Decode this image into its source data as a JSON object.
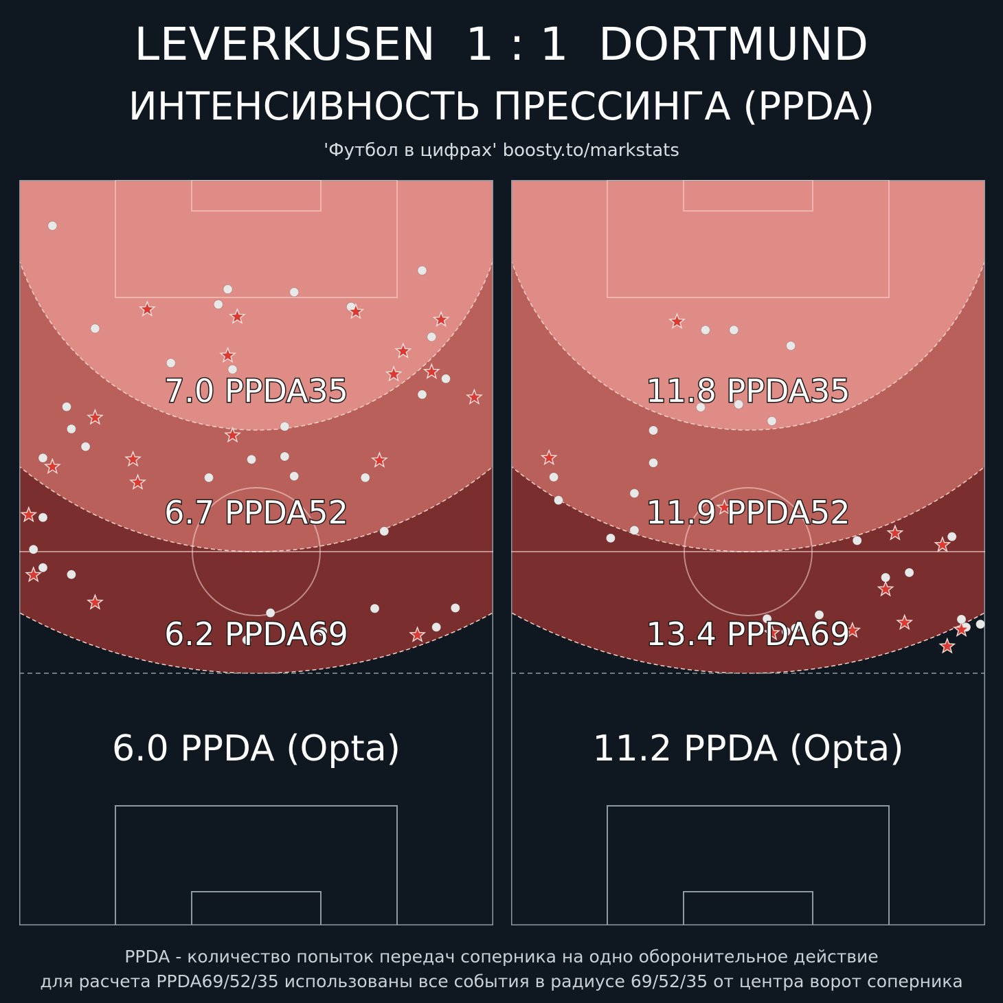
{
  "header": {
    "title": "LEVERKUSEN  1 : 1  DORTMUND",
    "subtitle": "ИНТЕНСИВНОСТЬ ПРЕССИНГА (PPDA)",
    "credit": "'Футбол в цифрах' boosty.to/markstats"
  },
  "footer": {
    "line1": "PPDA - количество попыток передач соперника на одно оборонительное действие",
    "line2": "для расчета PPDA69/52/35 использованы все события в радиусе 69/52/35 от центра ворот соперника"
  },
  "colors": {
    "background": "#0f1820",
    "zone35": "#de8c85",
    "zone52": "#b9605b",
    "zone69": "#7b2e2e",
    "star": "#d93a31",
    "dot": "#e8e8e8",
    "pitch_line": "#8d9aa3"
  },
  "chart_data": [
    {
      "type": "scatter",
      "team": "LEVERKUSEN",
      "ppda35_label": "7.0 PPDA35",
      "ppda52_label": "6.7 PPDA52",
      "ppda69_label": "6.2 PPDA69",
      "opta_label": "6.0 PPDA (Opta)",
      "points": [
        {
          "x": 7,
          "y": 9.3,
          "m": "dot"
        },
        {
          "x": 44,
          "y": 22.2,
          "m": "dot"
        },
        {
          "x": 42,
          "y": 25.3,
          "m": "dot"
        },
        {
          "x": 58,
          "y": 22.8,
          "m": "dot"
        },
        {
          "x": 70,
          "y": 25.8,
          "m": "dot"
        },
        {
          "x": 27,
          "y": 26.3,
          "m": "star"
        },
        {
          "x": 46,
          "y": 27.8,
          "m": "star"
        },
        {
          "x": 71,
          "y": 26.8,
          "m": "star"
        },
        {
          "x": 85,
          "y": 18.4,
          "m": "dot"
        },
        {
          "x": 89,
          "y": 28.4,
          "m": "star"
        },
        {
          "x": 44,
          "y": 35.7,
          "m": "star"
        },
        {
          "x": 45,
          "y": 38.5,
          "m": "dot"
        },
        {
          "x": 87,
          "y": 31.9,
          "m": "dot"
        },
        {
          "x": 81,
          "y": 34.8,
          "m": "star"
        },
        {
          "x": 32,
          "y": 37.2,
          "m": "dot"
        },
        {
          "x": 16,
          "y": 30.2,
          "m": "dot"
        },
        {
          "x": 87,
          "y": 39.0,
          "m": "star"
        },
        {
          "x": 79,
          "y": 39.5,
          "m": "star"
        },
        {
          "x": 90,
          "y": 40.4,
          "m": "dot"
        },
        {
          "x": 85,
          "y": 43.6,
          "m": "dot"
        },
        {
          "x": 96,
          "y": 44.2,
          "m": "star"
        },
        {
          "x": 56,
          "y": 50.1,
          "m": "dot"
        },
        {
          "x": 11,
          "y": 50.6,
          "m": "dot"
        },
        {
          "x": 56,
          "y": 56.2,
          "m": "dot"
        },
        {
          "x": 10,
          "y": 46.1,
          "m": "dot"
        },
        {
          "x": 16,
          "y": 48.3,
          "m": "star"
        },
        {
          "x": 14,
          "y": 54.2,
          "m": "dot"
        },
        {
          "x": 76,
          "y": 57.0,
          "m": "star"
        },
        {
          "x": 5,
          "y": 56.5,
          "m": "dot"
        },
        {
          "x": 7,
          "y": 58.3,
          "m": "star"
        },
        {
          "x": 40,
          "y": 60.5,
          "m": "dot"
        },
        {
          "x": 58,
          "y": 60.2,
          "m": "dot"
        },
        {
          "x": 45,
          "y": 51.9,
          "m": "star"
        },
        {
          "x": 49,
          "y": 56.8,
          "m": "dot"
        },
        {
          "x": 73,
          "y": 60.5,
          "m": "dot"
        },
        {
          "x": 24,
          "y": 56.8,
          "m": "star"
        },
        {
          "x": 25,
          "y": 61.5,
          "m": "star"
        },
        {
          "x": 5,
          "y": 68.6,
          "m": "dot"
        },
        {
          "x": 2,
          "y": 68.1,
          "m": "star"
        },
        {
          "x": 3,
          "y": 75.1,
          "m": "dot"
        },
        {
          "x": 11,
          "y": 80.2,
          "m": "dot"
        },
        {
          "x": 77,
          "y": 71.4,
          "m": "dot"
        },
        {
          "x": 75,
          "y": 87.1,
          "m": "dot"
        },
        {
          "x": 53,
          "y": 88.0,
          "m": "dot"
        },
        {
          "x": 92,
          "y": 87.0,
          "m": "dot"
        },
        {
          "x": 5,
          "y": 78.8,
          "m": "dot"
        },
        {
          "x": 3,
          "y": 80.3,
          "m": "star"
        },
        {
          "x": 16,
          "y": 85.9,
          "m": "star"
        },
        {
          "x": 64,
          "y": 91.8,
          "m": "dot"
        },
        {
          "x": 48,
          "y": 93.5,
          "m": "dot"
        },
        {
          "x": 88,
          "y": 90.9,
          "m": "dot"
        },
        {
          "x": 84,
          "y": 92.5,
          "m": "star"
        }
      ]
    },
    {
      "type": "scatter",
      "team": "DORTMUND",
      "ppda35_label": "11.8 PPDA35",
      "ppda52_label": "11.9 PPDA52",
      "ppda69_label": "13.4 PPDA69",
      "opta_label": "11.2 PPDA (Opta)",
      "points": [
        {
          "x": 10,
          "y": 65.1,
          "m": "dot"
        },
        {
          "x": 35,
          "y": 28.8,
          "m": "star"
        },
        {
          "x": 41,
          "y": 30.5,
          "m": "dot"
        },
        {
          "x": 47,
          "y": 30.5,
          "m": "dot"
        },
        {
          "x": 59,
          "y": 33.7,
          "m": "dot"
        },
        {
          "x": 48,
          "y": 45.6,
          "m": "dot"
        },
        {
          "x": 55,
          "y": 49.0,
          "m": "dot"
        },
        {
          "x": 40,
          "y": 46.2,
          "m": "dot"
        },
        {
          "x": 8,
          "y": 56.5,
          "m": "star"
        },
        {
          "x": 9,
          "y": 60.4,
          "m": "dot"
        },
        {
          "x": 45,
          "y": 66.6,
          "m": "star"
        },
        {
          "x": 73,
          "y": 73.3,
          "m": "dot"
        },
        {
          "x": 81,
          "y": 71.8,
          "m": "star"
        },
        {
          "x": 93,
          "y": 72.5,
          "m": "dot"
        },
        {
          "x": 91,
          "y": 74.2,
          "m": "star"
        },
        {
          "x": 79,
          "y": 80.8,
          "m": "dot"
        },
        {
          "x": 79,
          "y": 83.2,
          "m": "star"
        },
        {
          "x": 54,
          "y": 89.2,
          "m": "dot"
        },
        {
          "x": 72,
          "y": 91.6,
          "m": "star"
        },
        {
          "x": 83,
          "y": 90.0,
          "m": "star"
        },
        {
          "x": 96,
          "y": 90.9,
          "m": "dot"
        },
        {
          "x": 95,
          "y": 91.4,
          "m": "star"
        },
        {
          "x": 95,
          "y": 89.3,
          "m": "dot"
        },
        {
          "x": 99,
          "y": 90.3,
          "m": "dot"
        },
        {
          "x": 92,
          "y": 94.8,
          "m": "star"
        },
        {
          "x": 55,
          "y": 92.1,
          "m": "star"
        },
        {
          "x": 60,
          "y": 91.1,
          "m": "dot"
        },
        {
          "x": 65,
          "y": 88.4,
          "m": "dot"
        },
        {
          "x": 26,
          "y": 71.2,
          "m": "dot"
        },
        {
          "x": 21,
          "y": 72.8,
          "m": "dot"
        },
        {
          "x": 30,
          "y": 50.9,
          "m": "dot"
        },
        {
          "x": 30,
          "y": 57.5,
          "m": "dot"
        },
        {
          "x": 26,
          "y": 63.7,
          "m": "dot"
        },
        {
          "x": 58,
          "y": 91.8,
          "m": "dot"
        },
        {
          "x": 84,
          "y": 79.8,
          "m": "dot"
        }
      ]
    }
  ]
}
